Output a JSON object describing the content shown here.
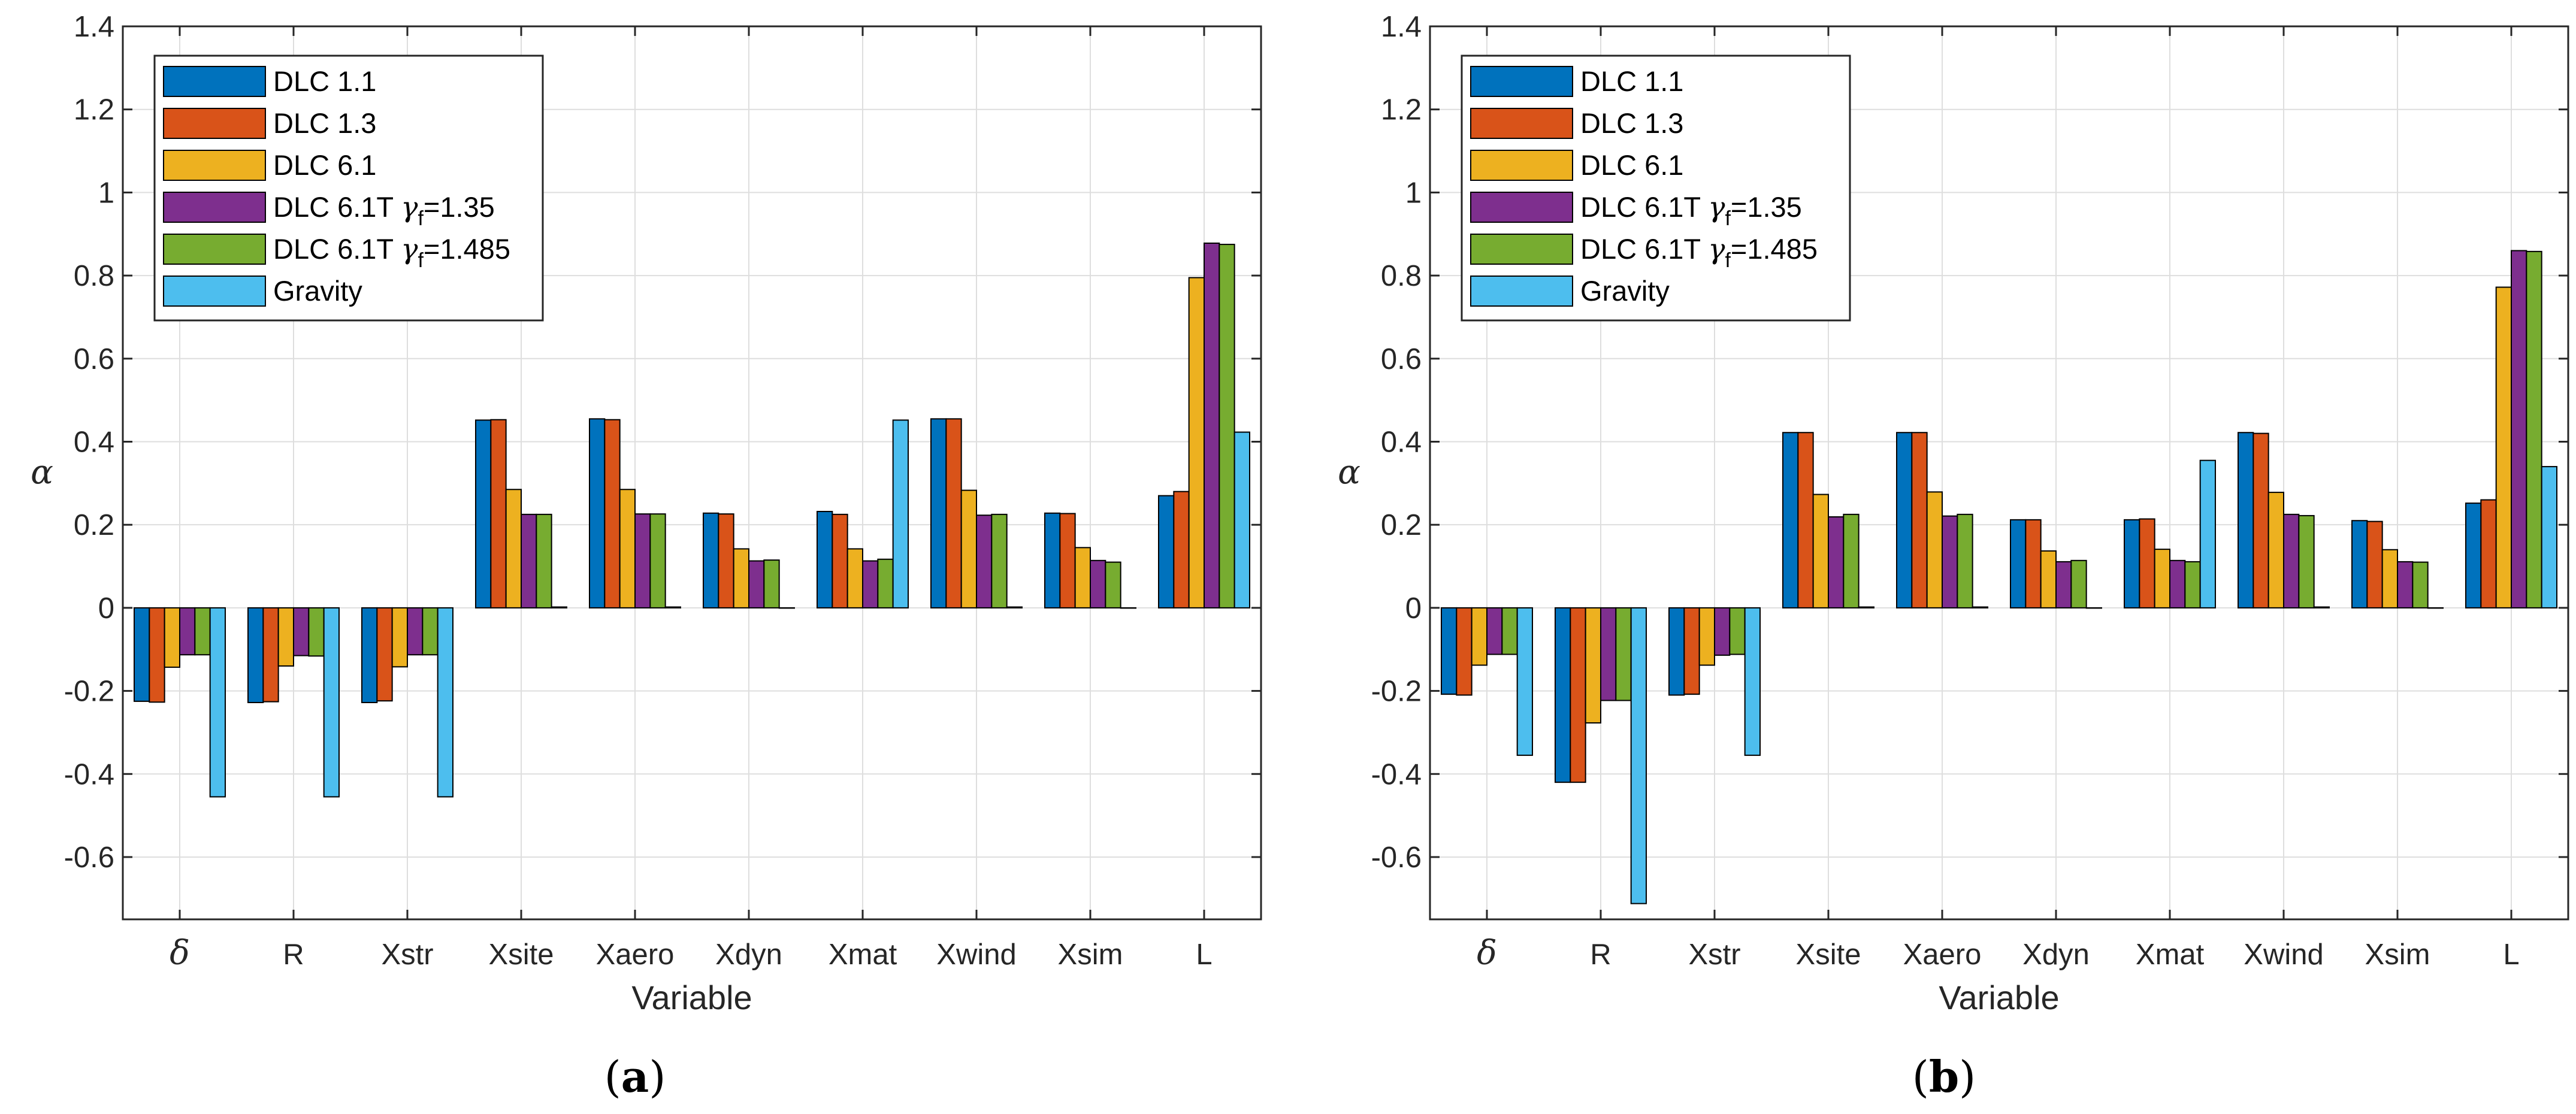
{
  "charts": [
    {
      "panel": {
        "open": "(",
        "letter": "a",
        "close": ")"
      },
      "chart_data": {
        "type": "bar",
        "title": "",
        "xlabel": "Variable",
        "ylabel": "α",
        "ylim": [
          -0.75,
          1.4
        ],
        "yticks": [
          "1.4",
          "1.2",
          "1",
          "0.8",
          "0.6",
          "0.4",
          "0.2",
          "0",
          "-0.2",
          "-0.4",
          "-0.6"
        ],
        "ytick_values": [
          1.4,
          1.2,
          1,
          0.8,
          0.6,
          0.4,
          0.2,
          0,
          -0.2,
          -0.4,
          -0.6
        ],
        "grid": true,
        "legend_position": "top-left",
        "categories": [
          "δ",
          "R",
          "Xstr",
          "Xsite",
          "Xaero",
          "Xdyn",
          "Xmat",
          "Xwind",
          "Xsim",
          "L"
        ],
        "series": [
          {
            "name": "DLC 1.1",
            "legend_main": "DLC 1.1",
            "legend_sub": "",
            "legend_suffix": "",
            "color": "#0072BD",
            "values": [
              -0.225,
              -0.228,
              -0.228,
              0.452,
              0.455,
              0.228,
              0.232,
              0.455,
              0.228,
              0.27
            ]
          },
          {
            "name": "DLC 1.3",
            "legend_main": "DLC 1.3",
            "legend_sub": "",
            "legend_suffix": "",
            "color": "#D95319",
            "values": [
              -0.227,
              -0.226,
              -0.224,
              0.453,
              0.453,
              0.226,
              0.225,
              0.455,
              0.227,
              0.28
            ]
          },
          {
            "name": "DLC 6.1",
            "legend_main": "DLC 6.1",
            "legend_sub": "",
            "legend_suffix": "",
            "color": "#EDB120",
            "values": [
              -0.143,
              -0.14,
              -0.142,
              0.285,
              0.285,
              0.142,
              0.142,
              0.283,
              0.145,
              0.795
            ]
          },
          {
            "name": "DLC 6.1T γf=1.35",
            "legend_main": "DLC 6.1T ",
            "legend_sub": "f",
            "legend_suffix": "=1.35",
            "color": "#7E2F8E",
            "values": [
              -0.113,
              -0.115,
              -0.113,
              0.225,
              0.226,
              0.113,
              0.113,
              0.223,
              0.114,
              0.878
            ]
          },
          {
            "name": "DLC 6.1T γf=1.485",
            "legend_main": "DLC 6.1T ",
            "legend_sub": "f",
            "legend_suffix": "=1.485",
            "color": "#77AC30",
            "values": [
              -0.113,
              -0.116,
              -0.113,
              0.225,
              0.226,
              0.115,
              0.117,
              0.225,
              0.11,
              0.875
            ]
          },
          {
            "name": "Gravity",
            "legend_main": "Gravity",
            "legend_sub": "",
            "legend_suffix": "",
            "color": "#4DBEEE",
            "values": [
              -0.455,
              -0.455,
              -0.455,
              0.002,
              0.002,
              0.0,
              0.452,
              0.002,
              0.0,
              0.423
            ]
          }
        ]
      }
    },
    {
      "panel": {
        "open": "(",
        "letter": "b",
        "close": ")"
      },
      "chart_data": {
        "type": "bar",
        "title": "",
        "xlabel": "Variable",
        "ylabel": "α",
        "ylim": [
          -0.75,
          1.4
        ],
        "yticks": [
          "1.4",
          "1.2",
          "1",
          "0.8",
          "0.6",
          "0.4",
          "0.2",
          "0",
          "-0.2",
          "-0.4",
          "-0.6"
        ],
        "ytick_values": [
          1.4,
          1.2,
          1,
          0.8,
          0.6,
          0.4,
          0.2,
          0,
          -0.2,
          -0.4,
          -0.6
        ],
        "grid": true,
        "legend_position": "top-left",
        "categories": [
          "δ",
          "R",
          "Xstr",
          "Xsite",
          "Xaero",
          "Xdyn",
          "Xmat",
          "Xwind",
          "Xsim",
          "L"
        ],
        "series": [
          {
            "name": "DLC 1.1",
            "legend_main": "DLC 1.1",
            "legend_sub": "",
            "legend_suffix": "",
            "color": "#0072BD",
            "values": [
              -0.208,
              -0.42,
              -0.21,
              0.422,
              0.422,
              0.212,
              0.212,
              0.422,
              0.21,
              0.252
            ]
          },
          {
            "name": "DLC 1.3",
            "legend_main": "DLC 1.3",
            "legend_sub": "",
            "legend_suffix": "",
            "color": "#D95319",
            "values": [
              -0.21,
              -0.42,
              -0.208,
              0.422,
              0.422,
              0.212,
              0.214,
              0.42,
              0.208,
              0.26
            ]
          },
          {
            "name": "DLC 6.1",
            "legend_main": "DLC 6.1",
            "legend_sub": "",
            "legend_suffix": "",
            "color": "#EDB120",
            "values": [
              -0.138,
              -0.277,
              -0.138,
              0.273,
              0.279,
              0.137,
              0.141,
              0.278,
              0.14,
              0.772
            ]
          },
          {
            "name": "DLC 6.1T γf=1.35",
            "legend_main": "DLC 6.1T ",
            "legend_sub": "f",
            "legend_suffix": "=1.35",
            "color": "#7E2F8E",
            "values": [
              -0.112,
              -0.223,
              -0.114,
              0.219,
              0.221,
              0.111,
              0.114,
              0.225,
              0.111,
              0.86
            ]
          },
          {
            "name": "DLC 6.1T γf=1.485",
            "legend_main": "DLC 6.1T ",
            "legend_sub": "f",
            "legend_suffix": "=1.485",
            "color": "#77AC30",
            "values": [
              -0.112,
              -0.223,
              -0.112,
              0.225,
              0.225,
              0.114,
              0.111,
              0.222,
              0.11,
              0.858
            ]
          },
          {
            "name": "Gravity",
            "legend_main": "Gravity",
            "legend_sub": "",
            "legend_suffix": "",
            "color": "#4DBEEE",
            "values": [
              -0.355,
              -0.712,
              -0.355,
              0.002,
              0.002,
              0.0,
              0.355,
              0.002,
              0.0,
              0.34
            ]
          }
        ]
      }
    }
  ]
}
